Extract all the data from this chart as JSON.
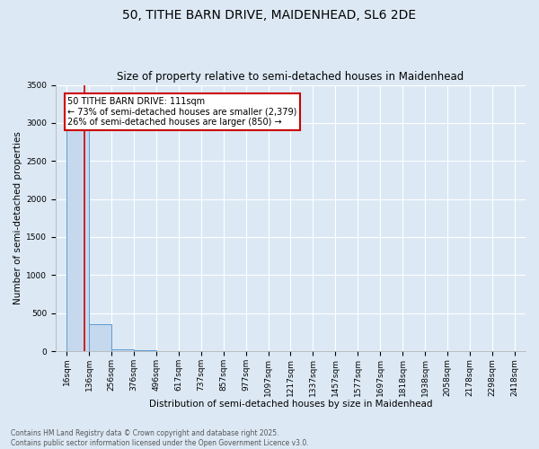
{
  "title": "50, TITHE BARN DRIVE, MAIDENHEAD, SL6 2DE",
  "subtitle": "Size of property relative to semi-detached houses in Maidenhead",
  "xlabel": "Distribution of semi-detached houses by size in Maidenhead",
  "ylabel": "Number of semi-detached properties",
  "footnote": "Contains HM Land Registry data © Crown copyright and database right 2025.\nContains public sector information licensed under the Open Government Licence v3.0.",
  "bins": [
    16,
    136,
    256,
    376,
    496,
    617,
    737,
    857,
    977,
    1097,
    1217,
    1337,
    1457,
    1577,
    1697,
    1818,
    1938,
    2058,
    2178,
    2298,
    2418
  ],
  "bar_heights": [
    3229,
    350,
    20,
    10,
    5,
    3,
    2,
    2,
    1,
    1,
    1,
    1,
    1,
    0,
    0,
    0,
    0,
    0,
    0,
    0
  ],
  "bar_color": "#c5d8ed",
  "bar_edge_color": "#5b9bd5",
  "property_size": 111,
  "annotation_line1": "50 TITHE BARN DRIVE: 111sqm",
  "annotation_line2": "← 73% of semi-detached houses are smaller (2,379)",
  "annotation_line3": "26% of semi-detached houses are larger (850) →",
  "annotation_box_facecolor": "#ffffff",
  "annotation_box_edgecolor": "#cc0000",
  "vline_color": "#cc0000",
  "background_color": "#dce9f5",
  "ylim": [
    0,
    3500
  ],
  "yticks": [
    0,
    500,
    1000,
    1500,
    2000,
    2500,
    3000,
    3500
  ],
  "title_fontsize": 10,
  "subtitle_fontsize": 8.5,
  "tick_fontsize": 6.5,
  "ylabel_fontsize": 7.5,
  "xlabel_fontsize": 7.5,
  "annotation_fontsize": 7,
  "footnote_fontsize": 5.5
}
